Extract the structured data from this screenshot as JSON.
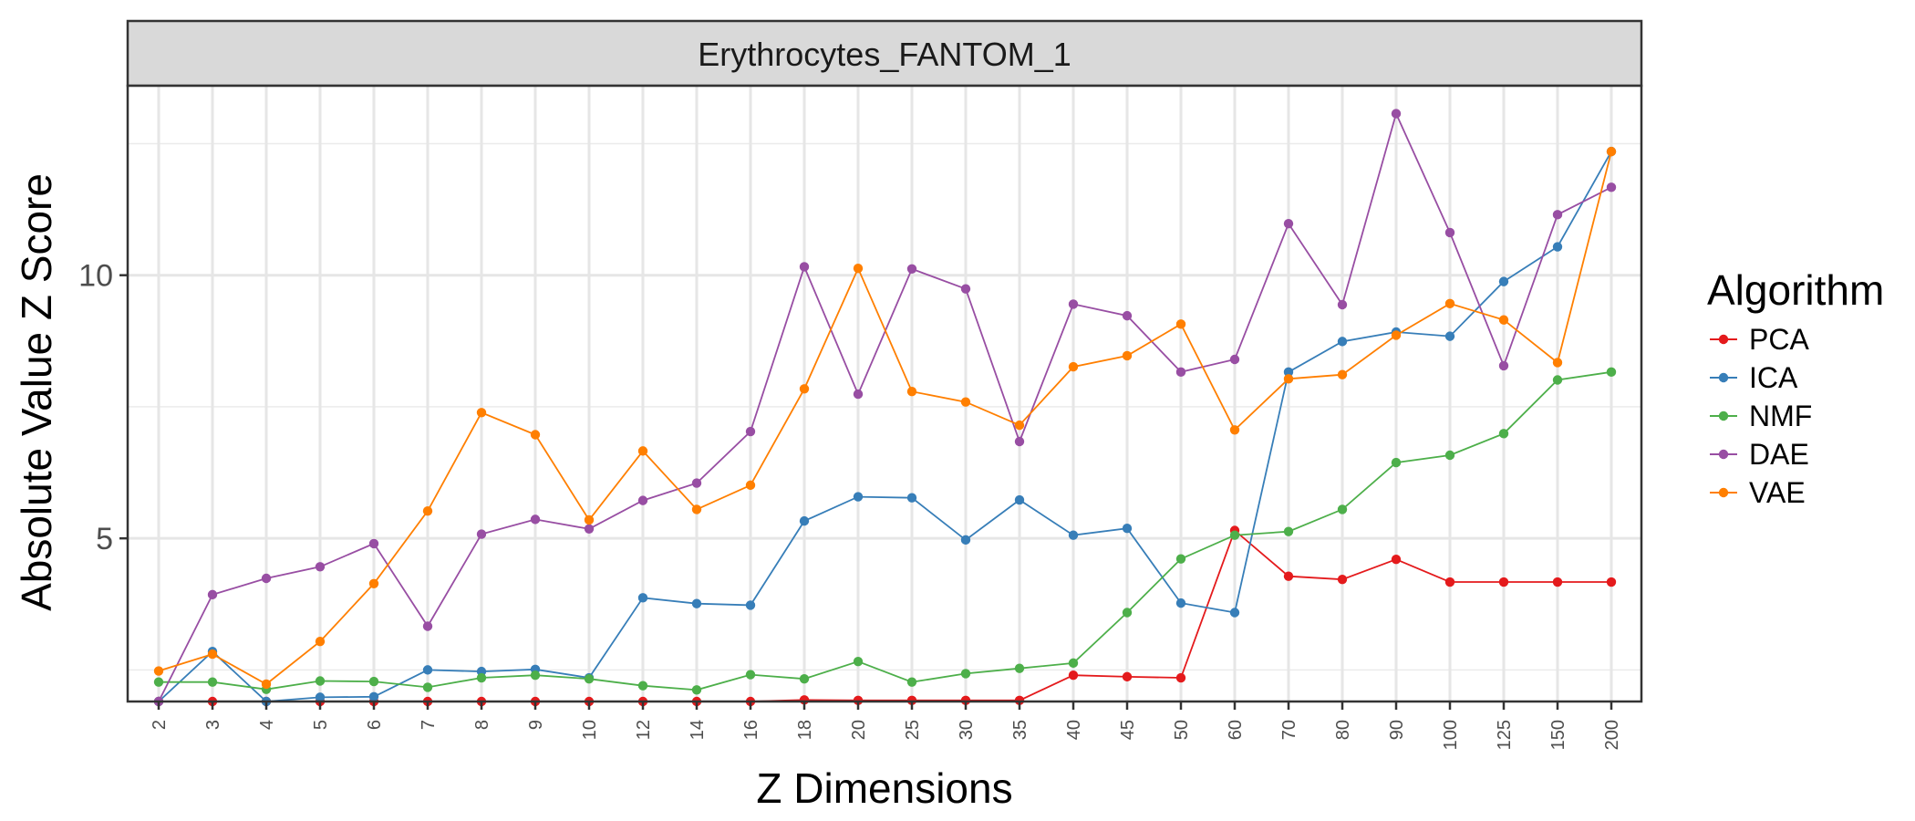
{
  "chart_data": {
    "type": "line",
    "facet_title": "Erythrocytes_FANTOM_1",
    "xlabel": "Z Dimensions",
    "ylabel": "Absolute Value Z Score",
    "x_is_categorical": true,
    "categories": [
      "2",
      "3",
      "4",
      "5",
      "6",
      "7",
      "8",
      "9",
      "10",
      "12",
      "14",
      "16",
      "18",
      "20",
      "25",
      "30",
      "35",
      "40",
      "45",
      "50",
      "60",
      "70",
      "80",
      "90",
      "100",
      "125",
      "150",
      "200"
    ],
    "ylim": [
      1.9,
      13.6
    ],
    "yticks": [
      5,
      10
    ],
    "ytick_labels": [
      "5",
      "10"
    ],
    "grid": true,
    "legend": {
      "title": "Algorithm",
      "position": "right"
    },
    "series": [
      {
        "name": "PCA",
        "color": "#E41A1C",
        "values": [
          1.9,
          1.9,
          1.9,
          1.9,
          1.9,
          1.9,
          1.9,
          1.9,
          1.9,
          1.9,
          1.9,
          1.9,
          1.93,
          1.92,
          1.92,
          1.92,
          1.92,
          2.4,
          2.37,
          2.35,
          5.15,
          4.28,
          4.22,
          4.6,
          4.17,
          4.17,
          4.17,
          4.17
        ]
      },
      {
        "name": "ICA",
        "color": "#377EB8",
        "values": [
          1.9,
          2.85,
          1.9,
          1.98,
          1.99,
          2.5,
          2.47,
          2.51,
          2.35,
          3.87,
          3.76,
          3.73,
          5.33,
          5.79,
          5.77,
          4.97,
          5.73,
          5.06,
          5.19,
          3.77,
          3.59,
          8.16,
          8.74,
          8.92,
          8.84,
          9.88,
          10.54,
          12.35
        ]
      },
      {
        "name": "NMF",
        "color": "#4DAF4A",
        "values": [
          2.27,
          2.27,
          2.13,
          2.29,
          2.28,
          2.17,
          2.35,
          2.4,
          2.33,
          2.2,
          2.12,
          2.41,
          2.33,
          2.66,
          2.27,
          2.43,
          2.53,
          2.63,
          3.59,
          4.61,
          5.06,
          5.13,
          5.55,
          6.44,
          6.58,
          6.99,
          8.01,
          8.16
        ]
      },
      {
        "name": "DAE",
        "color": "#984EA3",
        "values": [
          1.9,
          3.93,
          4.24,
          4.46,
          4.9,
          3.33,
          5.08,
          5.36,
          5.18,
          5.72,
          6.05,
          7.03,
          10.16,
          7.74,
          10.12,
          9.74,
          6.84,
          9.45,
          9.23,
          8.16,
          8.4,
          10.98,
          9.44,
          13.07,
          10.81,
          8.28,
          11.15,
          11.67
        ]
      },
      {
        "name": "VAE",
        "color": "#FF7F00",
        "values": [
          2.48,
          2.8,
          2.23,
          3.04,
          4.14,
          5.52,
          7.39,
          6.97,
          5.35,
          6.66,
          5.55,
          6.01,
          7.84,
          10.13,
          7.79,
          7.59,
          7.15,
          8.26,
          8.47,
          9.07,
          7.06,
          8.03,
          8.11,
          8.86,
          9.46,
          9.15,
          8.34,
          12.35
        ]
      }
    ]
  }
}
